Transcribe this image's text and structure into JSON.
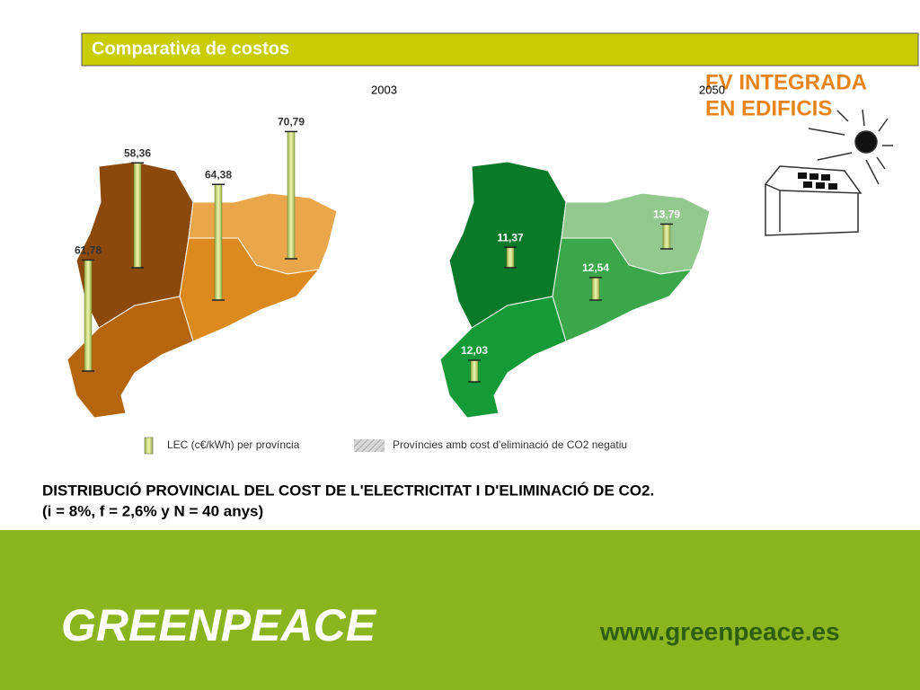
{
  "header": {
    "title": "Comparativa de costos"
  },
  "banner": {
    "line1": "FV INTEGRADA",
    "line2": "EN EDIFICIS"
  },
  "maps": [
    {
      "year": "2003",
      "values": [
        {
          "value": 61.78,
          "label": "61,78"
        },
        {
          "value": 58.36,
          "label": "58,36"
        },
        {
          "value": 64.38,
          "label": "64,38"
        },
        {
          "value": 70.79,
          "label": "70,79"
        }
      ]
    },
    {
      "year": "2050",
      "values": [
        {
          "value": 12.03,
          "label": "12,03"
        },
        {
          "value": 11.37,
          "label": "11,37"
        },
        {
          "value": 12.54,
          "label": "12,54"
        },
        {
          "value": 13.79,
          "label": "13,79"
        }
      ]
    }
  ],
  "legend": {
    "lec": "LEC (c€/kWh) per província",
    "negative": "Províncies amb cost d'eliminació de CO2 negatiu"
  },
  "caption": {
    "line1": "DISTRIBUCIÓ PROVINCIAL DEL COST DE L'ELECTRICITAT I D'ELIMINACIÓ DE CO2.",
    "line2": "(i = 8%, f = 2,6% y N = 40 anys)"
  },
  "footer": {
    "logo": "GREENPEACE",
    "url": "www.greenpeace.es"
  }
}
